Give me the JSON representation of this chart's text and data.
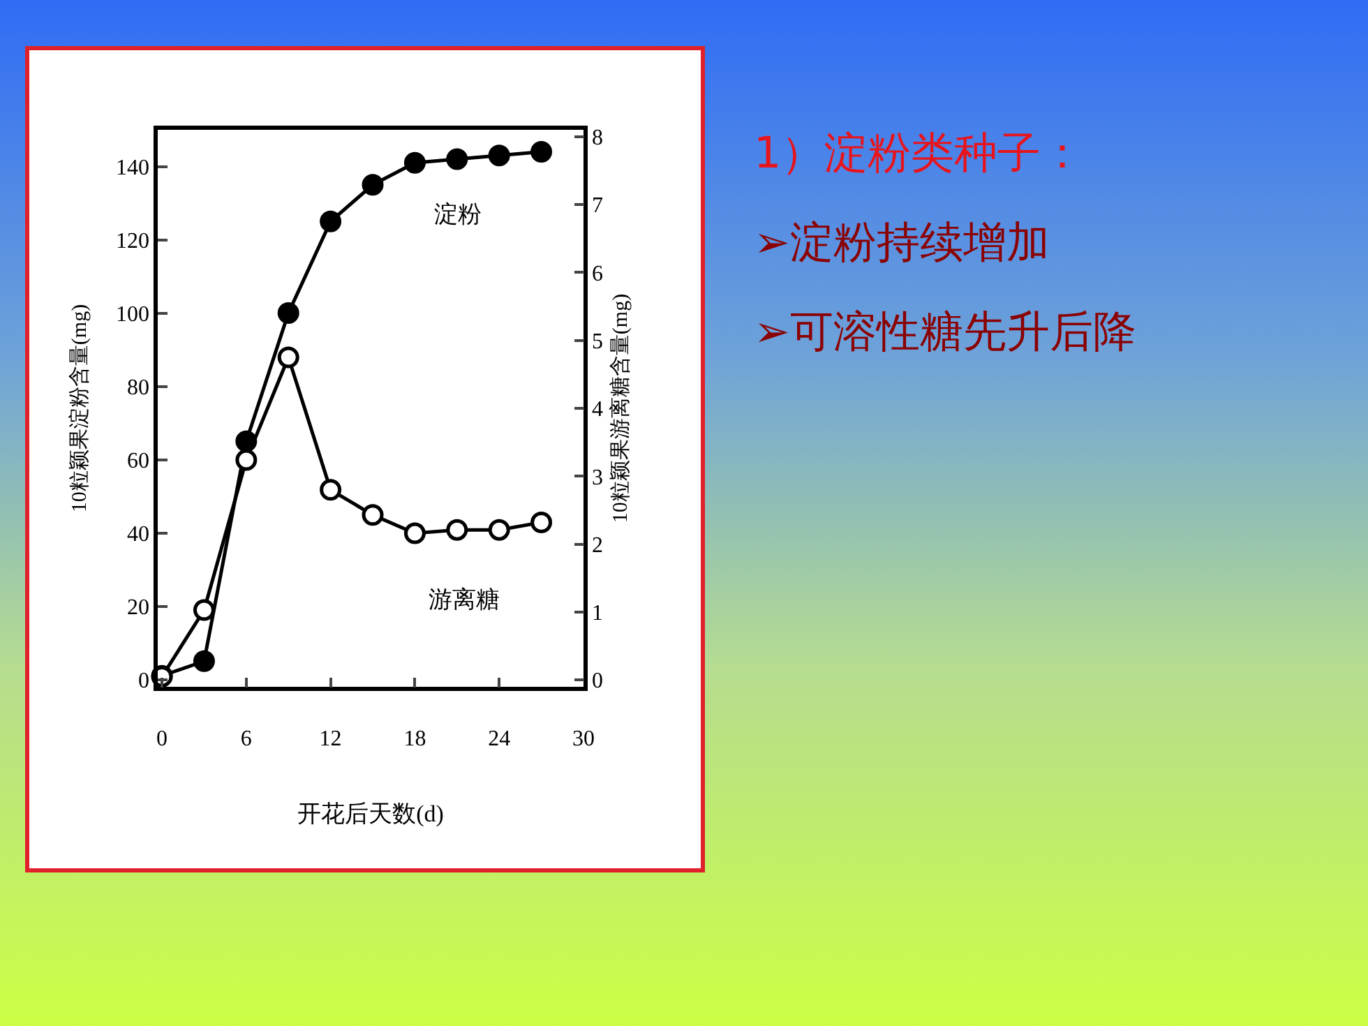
{
  "chart_data": {
    "type": "line",
    "xlabel": "开花后天数(d)",
    "ylabel": "10粒颖果淀粉含量(mg)",
    "y2label": "10粒颖果游离糖含量(mg)",
    "x": [
      0,
      3,
      6,
      9,
      12,
      15,
      18,
      21,
      24,
      27
    ],
    "series": [
      {
        "name": "淀粉",
        "color": "#000000",
        "values": [
          1,
          5,
          65,
          100,
          125,
          135,
          141,
          142,
          143,
          144
        ]
      },
      {
        "name": "游离糖",
        "color": "#000000",
        "axis": "y2",
        "values": [
          0.05,
          1.03,
          3.24,
          4.75,
          2.8,
          2.43,
          2.16,
          2.21,
          2.21,
          2.32
        ]
      }
    ],
    "xlim": [
      -0.3,
      30
    ],
    "xticks": [
      0,
      6,
      12,
      18,
      24,
      30
    ],
    "ylim": [
      -2,
      150
    ],
    "yticks": [
      0,
      20,
      40,
      60,
      80,
      100,
      120,
      140
    ],
    "y2lim": [
      -0.1,
      8.1
    ],
    "y2ticks": [
      0,
      1,
      2,
      3,
      4,
      5,
      6,
      7,
      8
    ],
    "grid": false,
    "legend": false,
    "marker": "circle",
    "line_style": "solid",
    "annotations": [
      "1）淀粉类种子：",
      "➢淀粉持续增加",
      "➢可溶性糖先升后降"
    ]
  }
}
